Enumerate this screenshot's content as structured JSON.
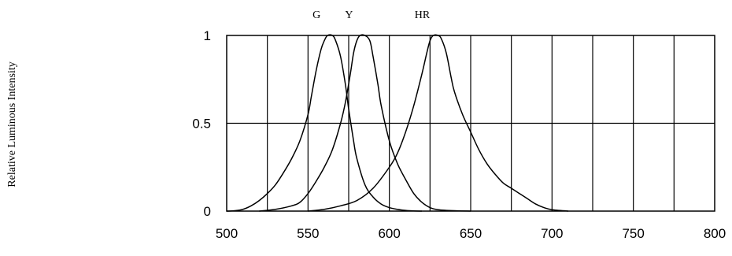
{
  "chart_data": {
    "type": "line",
    "title": "",
    "xlabel": "",
    "ylabel": "Relative Luminous Intensity",
    "xlim": [
      500,
      800
    ],
    "ylim": [
      0,
      1
    ],
    "x_ticks": [
      500,
      550,
      600,
      650,
      700,
      750,
      800
    ],
    "x_tick_labels": [
      "500",
      "550",
      "600",
      "650",
      "700",
      "750",
      "800"
    ],
    "y_ticks": [
      0,
      0.5,
      1
    ],
    "y_tick_labels": [
      "0",
      "0.5",
      "1"
    ],
    "x_gridlines": [
      525,
      550,
      575,
      600,
      625,
      650,
      675,
      700,
      725,
      750,
      775
    ],
    "y_gridlines": [
      0.5
    ],
    "grid": true,
    "legend": "none",
    "line_color": "#000000",
    "series": [
      {
        "name": "G",
        "x": [
          500,
          505,
          510,
          515,
          520,
          525,
          530,
          535,
          540,
          545,
          550,
          552,
          555,
          558,
          560,
          562,
          565,
          567,
          570,
          573,
          575,
          578,
          580,
          585,
          590,
          595,
          600,
          605,
          610,
          615,
          620
        ],
        "y": [
          0,
          0.002,
          0.01,
          0.03,
          0.06,
          0.1,
          0.15,
          0.22,
          0.3,
          0.4,
          0.55,
          0.65,
          0.8,
          0.92,
          0.97,
          1.0,
          1.0,
          0.97,
          0.88,
          0.72,
          0.58,
          0.4,
          0.3,
          0.15,
          0.08,
          0.04,
          0.02,
          0.01,
          0.004,
          0.001,
          0
        ]
      },
      {
        "name": "Y",
        "x": [
          520,
          530,
          540,
          545,
          550,
          555,
          560,
          565,
          570,
          573,
          576,
          578,
          580,
          582,
          585,
          588,
          590,
          593,
          595,
          600,
          605,
          610,
          615,
          620,
          625,
          630,
          640,
          650
        ],
        "y": [
          0,
          0.01,
          0.03,
          0.05,
          0.1,
          0.17,
          0.25,
          0.35,
          0.5,
          0.62,
          0.78,
          0.9,
          0.97,
          1.0,
          1.0,
          0.97,
          0.88,
          0.72,
          0.6,
          0.4,
          0.27,
          0.18,
          0.1,
          0.05,
          0.02,
          0.008,
          0.002,
          0
        ]
      },
      {
        "name": "HR",
        "x": [
          550,
          560,
          570,
          580,
          590,
          600,
          605,
          610,
          615,
          620,
          623,
          625,
          627,
          630,
          632,
          635,
          638,
          640,
          645,
          650,
          655,
          660,
          665,
          670,
          675,
          680,
          685,
          690,
          695,
          700,
          710
        ],
        "y": [
          0,
          0.01,
          0.03,
          0.06,
          0.13,
          0.25,
          0.33,
          0.45,
          0.6,
          0.78,
          0.9,
          0.97,
          1.0,
          1.0,
          0.98,
          0.9,
          0.76,
          0.68,
          0.55,
          0.45,
          0.35,
          0.27,
          0.21,
          0.16,
          0.13,
          0.1,
          0.07,
          0.04,
          0.02,
          0.008,
          0
        ]
      }
    ]
  }
}
